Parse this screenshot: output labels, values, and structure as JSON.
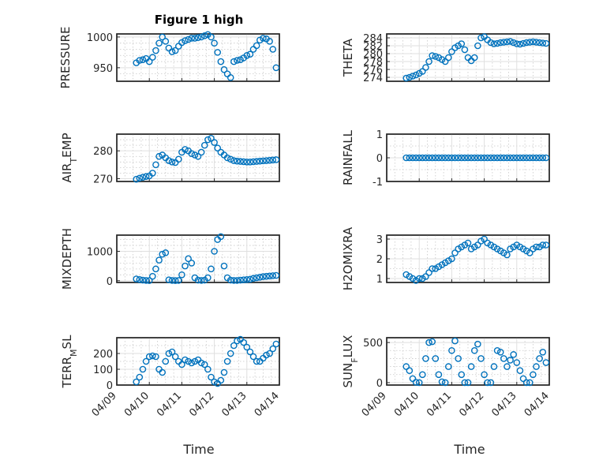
{
  "figure_title": "Figure 1 high",
  "colors": {
    "marker": "#0072BD",
    "axes": "#262626",
    "grid": "#dfdfdf"
  },
  "chart_data": [
    {
      "type": "scatter",
      "id": "pressure",
      "title": "Figure 1 high",
      "ylabel": "PRESSURE",
      "ylabel_sub": "",
      "ylim": [
        928,
        1005
      ],
      "yticks": [
        950,
        1000
      ],
      "yminor": [
        940,
        960,
        970,
        980,
        990
      ],
      "x": [
        0.6,
        0.7,
        0.8,
        0.9,
        1.0,
        1.1,
        1.2,
        1.3,
        1.4,
        1.5,
        1.6,
        1.7,
        1.8,
        1.9,
        2.0,
        2.1,
        2.2,
        2.3,
        2.4,
        2.5,
        2.6,
        2.7,
        2.8,
        2.9,
        3.0,
        3.1,
        3.2,
        3.3,
        3.4,
        3.5,
        3.6,
        3.7,
        3.8,
        3.9,
        4.0,
        4.1,
        4.2,
        4.3,
        4.4,
        4.5,
        4.6,
        4.7,
        4.8,
        4.9
      ],
      "y": [
        958,
        962,
        963,
        965,
        960,
        967,
        978,
        990,
        1000,
        993,
        982,
        976,
        978,
        985,
        991,
        994,
        996,
        998,
        998,
        999,
        1000,
        1002,
        1004,
        1000,
        990,
        975,
        960,
        947,
        940,
        934,
        960,
        962,
        963,
        966,
        970,
        972,
        980,
        986,
        995,
        998,
        997,
        993,
        980,
        950
      ]
    },
    {
      "type": "scatter",
      "id": "theta",
      "ylabel": "THETA",
      "ylabel_sub": "",
      "ylim": [
        273,
        285
      ],
      "yticks": [
        274,
        276,
        278,
        280,
        282,
        284
      ],
      "yminor": [],
      "x": [
        0.6,
        0.7,
        0.8,
        0.9,
        1.0,
        1.1,
        1.2,
        1.3,
        1.4,
        1.5,
        1.6,
        1.7,
        1.8,
        1.9,
        2.0,
        2.1,
        2.2,
        2.3,
        2.4,
        2.5,
        2.6,
        2.7,
        2.8,
        2.9,
        3.0,
        3.1,
        3.2,
        3.3,
        3.4,
        3.5,
        3.6,
        3.7,
        3.8,
        3.9,
        4.0,
        4.1,
        4.2,
        4.3,
        4.4,
        4.5,
        4.6,
        4.7,
        4.8,
        4.9
      ],
      "y": [
        273.8,
        274.0,
        274.3,
        274.6,
        275.0,
        275.5,
        276.5,
        278.0,
        279.5,
        279.3,
        279.0,
        278.5,
        278.0,
        279.0,
        280.5,
        281.5,
        282.0,
        282.5,
        281.0,
        279.0,
        278.2,
        279.0,
        282.0,
        284.0,
        284.3,
        283.5,
        282.8,
        282.5,
        282.6,
        282.8,
        282.9,
        283.0,
        283.1,
        282.8,
        282.5,
        282.4,
        282.6,
        282.8,
        282.9,
        283.0,
        282.9,
        282.8,
        282.7,
        282.6
      ]
    },
    {
      "type": "scatter",
      "id": "air_temp",
      "ylabel": "AIR",
      "ylabel_sub": "T",
      "ylabel_tail": "EMP",
      "ylim": [
        269,
        286
      ],
      "yticks": [
        270,
        280
      ],
      "yminor": [
        272,
        274,
        276,
        278,
        282,
        284
      ],
      "x": [
        0.6,
        0.7,
        0.8,
        0.9,
        1.0,
        1.1,
        1.2,
        1.3,
        1.4,
        1.5,
        1.6,
        1.7,
        1.8,
        1.9,
        2.0,
        2.1,
        2.2,
        2.3,
        2.4,
        2.5,
        2.6,
        2.7,
        2.8,
        2.9,
        3.0,
        3.1,
        3.2,
        3.3,
        3.4,
        3.5,
        3.6,
        3.7,
        3.8,
        3.9,
        4.0,
        4.1,
        4.2,
        4.3,
        4.4,
        4.5,
        4.6,
        4.7,
        4.8,
        4.9
      ],
      "y": [
        269.8,
        270.2,
        270.5,
        270.8,
        271.0,
        272.0,
        275.0,
        278.0,
        278.5,
        277.5,
        276.5,
        276.0,
        275.8,
        277.0,
        279.5,
        280.5,
        280.0,
        279.0,
        278.5,
        278.0,
        279.5,
        282.0,
        284.0,
        284.5,
        283.0,
        281.0,
        279.5,
        278.5,
        277.5,
        277.0,
        276.5,
        276.3,
        276.2,
        276.1,
        276.0,
        276.0,
        276.1,
        276.2,
        276.3,
        276.4,
        276.5,
        276.6,
        276.7,
        276.8
      ]
    },
    {
      "type": "scatter",
      "id": "rainfall",
      "ylabel": "RAINFALL",
      "ylabel_sub": "",
      "ylim": [
        -1,
        1
      ],
      "yticks": [
        -1,
        0,
        1
      ],
      "yminor": [
        -0.5,
        0.5
      ],
      "x": [
        0.6,
        0.7,
        0.8,
        0.9,
        1.0,
        1.1,
        1.2,
        1.3,
        1.4,
        1.5,
        1.6,
        1.7,
        1.8,
        1.9,
        2.0,
        2.1,
        2.2,
        2.3,
        2.4,
        2.5,
        2.6,
        2.7,
        2.8,
        2.9,
        3.0,
        3.1,
        3.2,
        3.3,
        3.4,
        3.5,
        3.6,
        3.7,
        3.8,
        3.9,
        4.0,
        4.1,
        4.2,
        4.3,
        4.4,
        4.5,
        4.6,
        4.7,
        4.8,
        4.9
      ],
      "y": [
        0,
        0,
        0,
        0,
        0,
        0,
        0,
        0,
        0,
        0,
        0,
        0,
        0,
        0,
        0,
        0,
        0,
        0,
        0,
        0,
        0,
        0,
        0,
        0,
        0,
        0,
        0,
        0,
        0,
        0,
        0,
        0,
        0,
        0,
        0,
        0,
        0,
        0,
        0,
        0,
        0,
        0,
        0,
        0
      ]
    },
    {
      "type": "scatter",
      "id": "mixdepth",
      "ylabel": "MIXDEPTH",
      "ylabel_sub": "",
      "ylim": [
        -60,
        1550
      ],
      "yticks": [
        0,
        1000
      ],
      "yminor": [
        200,
        400,
        600,
        800,
        1200,
        1400
      ],
      "x": [
        0.6,
        0.7,
        0.8,
        0.9,
        1.0,
        1.1,
        1.2,
        1.3,
        1.4,
        1.5,
        1.6,
        1.7,
        1.8,
        1.9,
        2.0,
        2.1,
        2.2,
        2.3,
        2.4,
        2.5,
        2.6,
        2.7,
        2.8,
        2.9,
        3.0,
        3.1,
        3.2,
        3.3,
        3.4,
        3.5,
        3.6,
        3.7,
        3.8,
        3.9,
        4.0,
        4.1,
        4.2,
        4.3,
        4.4,
        4.5,
        4.6,
        4.7,
        4.8,
        4.9
      ],
      "y": [
        60,
        40,
        20,
        10,
        5,
        150,
        400,
        700,
        900,
        950,
        30,
        10,
        5,
        10,
        200,
        500,
        750,
        600,
        100,
        20,
        10,
        20,
        100,
        400,
        1000,
        1400,
        1500,
        500,
        100,
        20,
        10,
        10,
        20,
        30,
        40,
        50,
        80,
        100,
        120,
        140,
        150,
        160,
        170,
        180
      ]
    },
    {
      "type": "scatter",
      "id": "h2omixra",
      "ylabel": "H2OMIXRA",
      "ylabel_sub": "",
      "ylim": [
        0.8,
        3.2
      ],
      "yticks": [
        1,
        2,
        3
      ],
      "yminor": [
        1.5,
        2.5
      ],
      "x": [
        0.6,
        0.7,
        0.8,
        0.9,
        1.0,
        1.1,
        1.2,
        1.3,
        1.4,
        1.5,
        1.6,
        1.7,
        1.8,
        1.9,
        2.0,
        2.1,
        2.2,
        2.3,
        2.4,
        2.5,
        2.6,
        2.7,
        2.8,
        2.9,
        3.0,
        3.1,
        3.2,
        3.3,
        3.4,
        3.5,
        3.6,
        3.7,
        3.8,
        3.9,
        4.0,
        4.1,
        4.2,
        4.3,
        4.4,
        4.5,
        4.6,
        4.7,
        4.8,
        4.9
      ],
      "y": [
        1.2,
        1.1,
        1.0,
        0.9,
        1.0,
        1.0,
        1.1,
        1.3,
        1.5,
        1.5,
        1.6,
        1.7,
        1.8,
        1.9,
        2.0,
        2.3,
        2.5,
        2.6,
        2.7,
        2.8,
        2.5,
        2.6,
        2.7,
        2.9,
        3.0,
        2.8,
        2.7,
        2.6,
        2.5,
        2.4,
        2.3,
        2.2,
        2.5,
        2.6,
        2.7,
        2.6,
        2.5,
        2.4,
        2.3,
        2.5,
        2.6,
        2.6,
        2.7,
        2.7
      ]
    },
    {
      "type": "scatter",
      "id": "terr_msl",
      "ylabel": "TERR",
      "ylabel_sub": "M",
      "ylabel_tail": "SL",
      "ylim": [
        0,
        300
      ],
      "yticks": [
        0,
        100,
        200
      ],
      "yminor": [
        50,
        150,
        250
      ],
      "x": [
        0.6,
        0.7,
        0.8,
        0.9,
        1.0,
        1.1,
        1.2,
        1.3,
        1.4,
        1.5,
        1.6,
        1.7,
        1.8,
        1.9,
        2.0,
        2.1,
        2.2,
        2.3,
        2.4,
        2.5,
        2.6,
        2.7,
        2.8,
        2.9,
        3.0,
        3.1,
        3.2,
        3.3,
        3.4,
        3.5,
        3.6,
        3.7,
        3.8,
        3.9,
        4.0,
        4.1,
        4.2,
        4.3,
        4.4,
        4.5,
        4.6,
        4.7,
        4.8,
        4.9
      ],
      "y": [
        20,
        50,
        100,
        150,
        180,
        185,
        180,
        100,
        80,
        150,
        200,
        210,
        180,
        150,
        130,
        160,
        150,
        140,
        150,
        160,
        140,
        130,
        100,
        50,
        20,
        10,
        30,
        80,
        150,
        200,
        250,
        280,
        290,
        270,
        240,
        210,
        180,
        150,
        150,
        170,
        190,
        200,
        230,
        260
      ]
    },
    {
      "type": "scatter",
      "id": "sun_flux",
      "ylabel": "SUN",
      "ylabel_sub": "F",
      "ylabel_tail": "LUX",
      "ylim": [
        -30,
        560
      ],
      "yticks": [
        0,
        500
      ],
      "yminor": [
        100,
        200,
        300,
        400
      ],
      "x": [
        0.6,
        0.7,
        0.8,
        0.9,
        1.0,
        1.1,
        1.2,
        1.3,
        1.4,
        1.5,
        1.6,
        1.7,
        1.8,
        1.9,
        2.0,
        2.1,
        2.2,
        2.3,
        2.4,
        2.5,
        2.6,
        2.7,
        2.8,
        2.9,
        3.0,
        3.1,
        3.2,
        3.3,
        3.4,
        3.5,
        3.6,
        3.7,
        3.8,
        3.9,
        4.0,
        4.1,
        4.2,
        4.3,
        4.4,
        4.5,
        4.6,
        4.7,
        4.8,
        4.9
      ],
      "y": [
        200,
        150,
        50,
        5,
        0,
        100,
        300,
        500,
        510,
        300,
        100,
        10,
        0,
        200,
        400,
        520,
        300,
        100,
        0,
        0,
        200,
        400,
        480,
        300,
        100,
        0,
        0,
        200,
        400,
        380,
        300,
        200,
        280,
        350,
        250,
        150,
        50,
        0,
        0,
        100,
        200,
        300,
        380,
        250
      ]
    }
  ],
  "x_axis": {
    "xlim": [
      0,
      5
    ],
    "tick_values": [
      0,
      1,
      2,
      3,
      4,
      5
    ],
    "tick_labels": [
      "04/09",
      "04/10",
      "04/11",
      "04/12",
      "04/13",
      "04/14"
    ],
    "xlabel_left": "Time",
    "xlabel_right": "Time"
  }
}
